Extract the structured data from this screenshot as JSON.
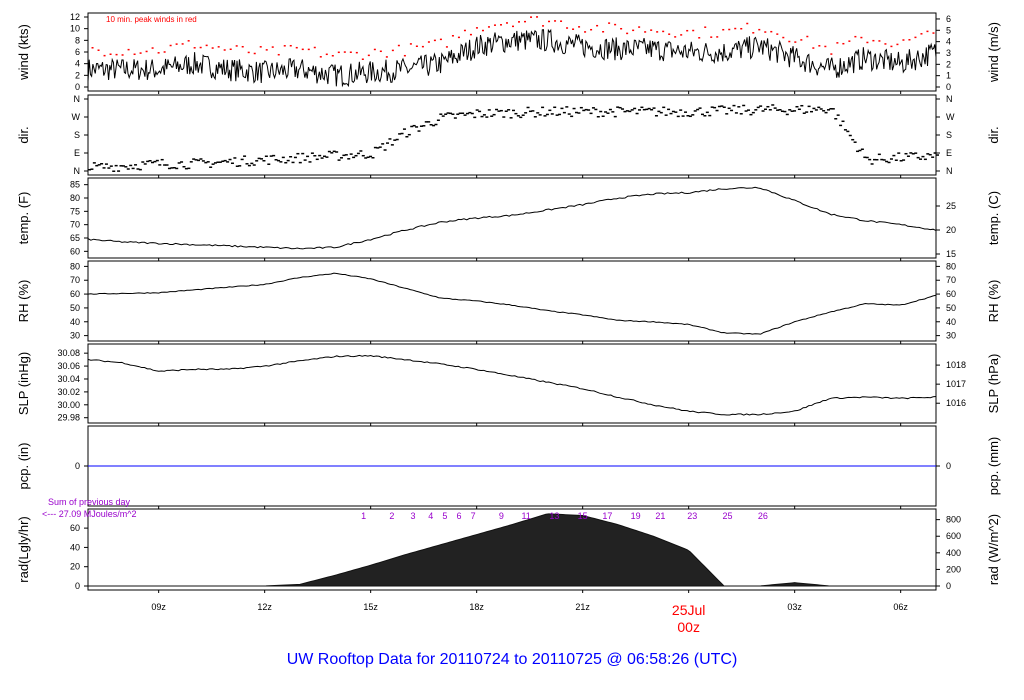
{
  "title": "UW Rooftop Data for 20110724  to  20110725 @ 06:58:26  (UTC)",
  "chart_data": {
    "type": "line",
    "x_unit": "hour UTC",
    "xlim": [
      7,
      31
    ],
    "x_ticks": [
      {
        "h": 9,
        "label": "09z"
      },
      {
        "h": 12,
        "label": "12z"
      },
      {
        "h": 15,
        "label": "15z"
      },
      {
        "h": 18,
        "label": "18z"
      },
      {
        "h": 21,
        "label": "21z"
      },
      {
        "h": 24,
        "label": "00z"
      },
      {
        "h": 27,
        "label": "03z"
      },
      {
        "h": 30,
        "label": "06z"
      }
    ],
    "date_label": "25Jul",
    "date_color": "#ff0000",
    "hours": [
      7,
      8,
      9,
      10,
      11,
      12,
      13,
      14,
      15,
      16,
      17,
      18,
      19,
      20,
      21,
      22,
      23,
      24,
      25,
      26,
      27,
      28,
      29,
      30,
      31
    ],
    "panels": [
      {
        "id": "wind",
        "ylabel": "wind (kts)",
        "ylabel_right": "wind (m/s)",
        "ylim": [
          0,
          12
        ],
        "ticks": [
          0,
          2,
          4,
          6,
          8,
          10,
          12
        ],
        "right_ticks": [
          0,
          1,
          2,
          3,
          4,
          5,
          6
        ],
        "annotation": "10 min. peak winds in red",
        "annotation_color": "#ff0000",
        "values": [
          3,
          3,
          3,
          4,
          3,
          2.5,
          3,
          2,
          2.5,
          3,
          4,
          7,
          8,
          8,
          7,
          6.5,
          6.5,
          6,
          6,
          7,
          5,
          3,
          5,
          4,
          6
        ]
      },
      {
        "id": "dir",
        "ylabel": "dir.",
        "ylabel_right": "dir.",
        "ylim": [
          0,
          360
        ],
        "tick_labels": [
          "N",
          "E",
          "S",
          "W",
          "N"
        ],
        "values": [
          20,
          30,
          40,
          40,
          50,
          60,
          70,
          80,
          90,
          200,
          270,
          290,
          295,
          300,
          300,
          300,
          300,
          300,
          305,
          310,
          310,
          315,
          60,
          70,
          80
        ]
      },
      {
        "id": "temp",
        "ylabel": "temp. (F)",
        "ylabel_right": "temp. (C)",
        "ylim": [
          59,
          86
        ],
        "ticks": [
          60,
          65,
          70,
          75,
          80,
          85
        ],
        "right_ticks": [
          15,
          20,
          25
        ],
        "values": [
          64.5,
          63.5,
          63,
          62.5,
          62,
          61.5,
          61,
          61.5,
          64.5,
          68,
          71,
          72.5,
          73.5,
          75.5,
          77.5,
          80,
          81.5,
          82,
          83.5,
          84,
          79,
          74,
          71.5,
          70,
          68
        ]
      },
      {
        "id": "rh",
        "ylabel": "RH (%)",
        "ylabel_right": "RH (%)",
        "ylim": [
          29,
          81
        ],
        "ticks": [
          30,
          40,
          50,
          60,
          70,
          80
        ],
        "right_ticks": [
          30,
          40,
          50,
          60,
          70,
          80
        ],
        "values": [
          60,
          60.5,
          61,
          63,
          65,
          67,
          72,
          75,
          71,
          64,
          57,
          55,
          52,
          48,
          45,
          41,
          40,
          38,
          32,
          31,
          40,
          47,
          53,
          52,
          59
        ]
      },
      {
        "id": "slp",
        "ylabel": "SLP (inHg)",
        "ylabel_right": "SLP (hPa)",
        "ylim": [
          29.978,
          30.088
        ],
        "ticks": [
          29.98,
          30.0,
          30.02,
          30.04,
          30.06,
          30.08
        ],
        "right_ticks": [
          1016,
          1017,
          1018
        ],
        "values": [
          30.07,
          30.065,
          30.052,
          30.055,
          30.055,
          30.06,
          30.068,
          30.075,
          30.076,
          30.07,
          30.063,
          30.055,
          30.045,
          30.035,
          30.025,
          30.012,
          30.0,
          29.99,
          29.985,
          29.985,
          29.99,
          30.01,
          30.012,
          30.01,
          30.012
        ]
      },
      {
        "id": "pcp",
        "ylabel": "pcp. (in)",
        "ylabel_right": "pcp. (mm)",
        "ylim": [
          -1,
          1
        ],
        "ticks": [
          0
        ],
        "right_ticks": [
          0
        ],
        "line_color": "#0000ff",
        "values": [
          0,
          0,
          0,
          0,
          0,
          0,
          0,
          0,
          0,
          0,
          0,
          0,
          0,
          0,
          0,
          0,
          0,
          0,
          0,
          0,
          0,
          0,
          0,
          0,
          0
        ]
      },
      {
        "id": "rad",
        "ylabel": "rad(Lgly/hr)",
        "ylabel_right": "rad (W/m^2)",
        "ylim": [
          0,
          880
        ],
        "ticks": [
          0,
          20,
          40,
          60
        ],
        "right_ticks": [
          0,
          200,
          400,
          600,
          800
        ],
        "values": [
          0,
          0,
          0,
          0,
          0,
          0,
          20,
          130,
          250,
          380,
          500,
          620,
          740,
          870,
          850,
          740,
          600,
          430,
          0,
          0,
          40,
          0,
          0,
          0,
          0
        ],
        "note_line1": "Sum of previous day",
        "note_line2": "<--- 27.09 MJoules/m^2",
        "note_color": "#9900cc",
        "cumulative_labels": [
          {
            "h": 14.8,
            "label": "1"
          },
          {
            "h": 15.6,
            "label": "2"
          },
          {
            "h": 16.2,
            "label": "3"
          },
          {
            "h": 16.7,
            "label": "4"
          },
          {
            "h": 17.1,
            "label": "5"
          },
          {
            "h": 17.5,
            "label": "6"
          },
          {
            "h": 17.9,
            "label": "7"
          },
          {
            "h": 18.7,
            "label": "9"
          },
          {
            "h": 19.4,
            "label": "11"
          },
          {
            "h": 20.2,
            "label": "13"
          },
          {
            "h": 21.0,
            "label": "15"
          },
          {
            "h": 21.7,
            "label": "17"
          },
          {
            "h": 22.5,
            "label": "19"
          },
          {
            "h": 23.2,
            "label": "21"
          },
          {
            "h": 24.1,
            "label": "23"
          },
          {
            "h": 25.1,
            "label": "25"
          },
          {
            "h": 26.1,
            "label": "26"
          }
        ]
      }
    ]
  }
}
